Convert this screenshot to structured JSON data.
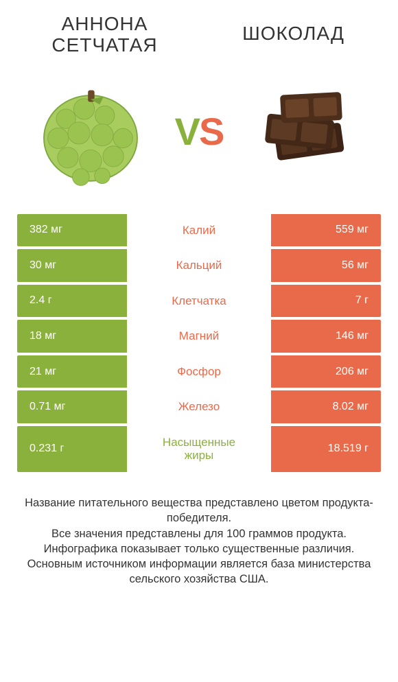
{
  "colors": {
    "left": "#8bb13d",
    "right": "#e96a4a",
    "text": "#333333",
    "white": "#ffffff"
  },
  "titles": {
    "left": "АННОНА\nСЕТЧАТАЯ",
    "right": "ШОКОЛАД"
  },
  "vs": {
    "v": "V",
    "s": "S"
  },
  "rows": [
    {
      "left": "382 мг",
      "label": "Калий",
      "right": "559 мг",
      "winner": "right"
    },
    {
      "left": "30 мг",
      "label": "Кальций",
      "right": "56 мг",
      "winner": "right"
    },
    {
      "left": "2.4 г",
      "label": "Клетчатка",
      "right": "7 г",
      "winner": "right"
    },
    {
      "left": "18 мг",
      "label": "Магний",
      "right": "146 мг",
      "winner": "right"
    },
    {
      "left": "21 мг",
      "label": "Фосфор",
      "right": "206 мг",
      "winner": "right"
    },
    {
      "left": "0.71 мг",
      "label": "Железо",
      "right": "8.02 мг",
      "winner": "right"
    },
    {
      "left": "0.231 г",
      "label": "Насыщенные\nжиры",
      "right": "18.519 г",
      "winner": "left"
    }
  ],
  "footer": {
    "line1": "Название питательного вещества представлено цветом продукта-победителя.",
    "line2": "Все значения представлены для 100 граммов продукта.",
    "line3": "Инфографика показывает только существенные различия.",
    "line4": "Основным источником информации является база министерства сельского хозяйства США."
  }
}
